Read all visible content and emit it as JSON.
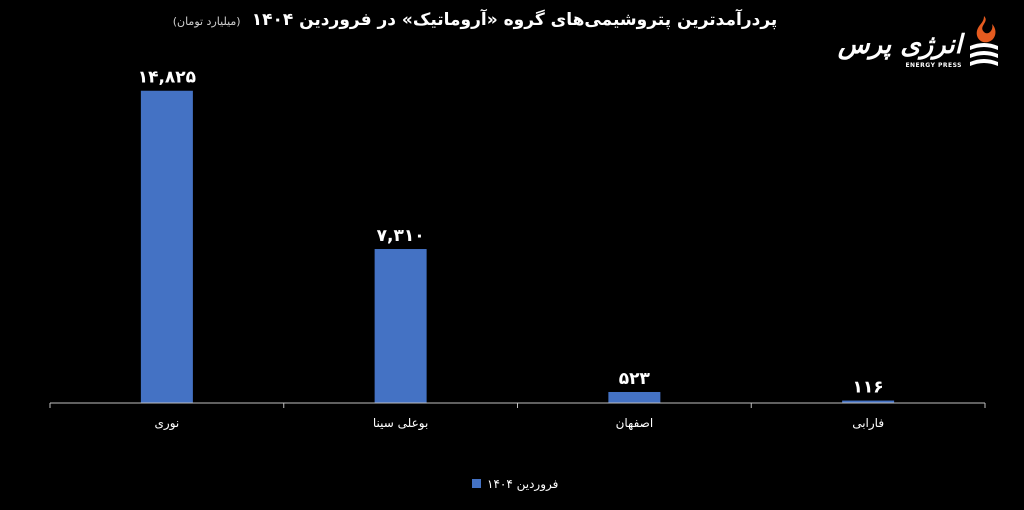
{
  "header": {
    "title": "پردرآمدترین پتروشیمی‌های گروه «آروماتیک» در فروردین ۱۴۰۴",
    "unit": "(میلیارد تومان)"
  },
  "logo": {
    "text": "انرژی پرس",
    "subtext": "ENERGY PRESS",
    "icon": "flame-logo-icon"
  },
  "chart_data": {
    "type": "bar",
    "title": "پردرآمدترین پتروشیمی‌های گروه «آروماتیک» در فروردین ۱۴۰۴",
    "subtitle": "(میلیارد تومان)",
    "categories": [
      "نوری",
      "بوعلی سینا",
      "اصفهان",
      "فارابی"
    ],
    "series": [
      {
        "name": "فروردین ۱۴۰۴",
        "values": [
          14825,
          7310,
          523,
          116
        ],
        "labels": [
          "۱۴,۸۲۵",
          "۷,۳۱۰",
          "۵۲۳",
          "۱۱۶"
        ],
        "color": "#4472C4"
      }
    ],
    "ylim": [
      0,
      16000
    ],
    "grid": false,
    "legend": "bottom",
    "axis_color": "#bfbfbf"
  }
}
